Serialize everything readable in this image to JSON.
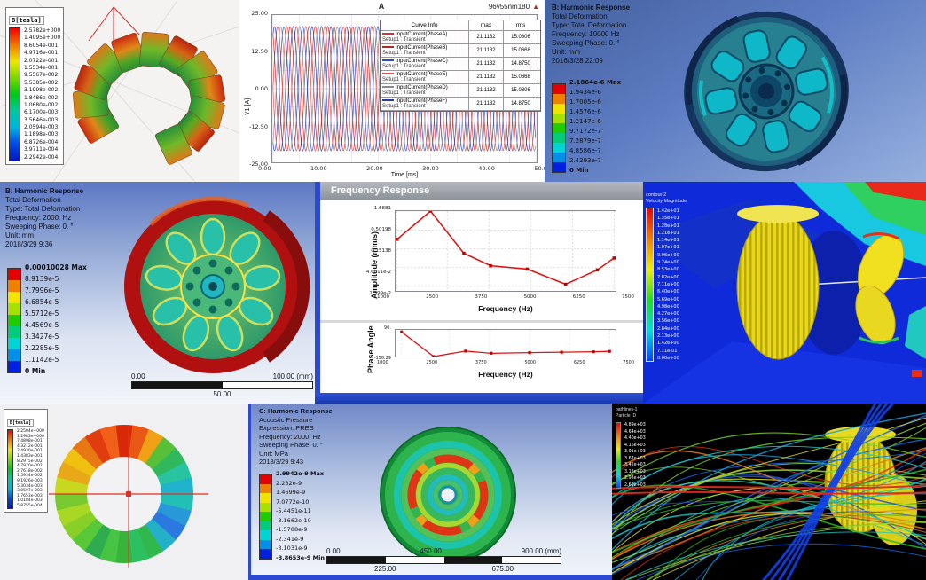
{
  "collage": {
    "maxwell_stator": {
      "legend_title": "B[tesla]",
      "legend_values": [
        "2.5782e+000",
        "1.4095e+000",
        "8.6054e-001",
        "4.9716e-001",
        "2.0722e-001",
        "1.5534e-001",
        "9.5567e-002",
        "5.5385e-002",
        "3.1998e-002",
        "1.8486e-002",
        "1.0680e-002",
        "6.1700e-003",
        "3.5646e-003",
        "2.0594e-003",
        "1.1898e-003",
        "6.8726e-004",
        "3.9711e-004",
        "2.2942e-004"
      ]
    },
    "current_plot": {
      "title": "A",
      "corner_label": "96v55nm180",
      "marker_icon": "▲",
      "ylabel": "Y1 [A]",
      "xlabel": "Time [ms]",
      "y_ticks": [
        "25.00",
        "12.50",
        "0.00",
        "-12.50",
        "-25.00"
      ],
      "x_ticks": [
        "0.00",
        "10.00",
        "20.00",
        "30.00",
        "40.00",
        "50.00"
      ],
      "legend_table": {
        "headers": [
          "Curve Info",
          "max",
          "rms"
        ],
        "setup_label": "Setup1 : Transient"
      }
    },
    "harmonic_top": {
      "info_lines": [
        "B: Harmonic Response",
        "Total Deformation",
        "Type: Total Deformation",
        "Frequency: 10000 Hz",
        "Sweeping Phase: 0. °",
        "Unit: mm",
        "2016/3/28 22:09"
      ],
      "legend_values": [
        "2.1864e-6 Max",
        "1.9434e-6",
        "1.7005e-6",
        "1.4576e-6",
        "1.2147e-6",
        "9.7172e-7",
        "7.2879e-7",
        "4.8586e-7",
        "2.4293e-7",
        "0 Min"
      ]
    },
    "harmonic_left": {
      "info_lines": [
        "B: Harmonic Response",
        "Total Deformation",
        "Type: Total Deformation",
        "Frequency: 2000. Hz",
        "Sweeping Phase: 0. °",
        "Unit: mm",
        "2018/3/29 9:36"
      ],
      "legend_values": [
        "0.00010028 Max",
        "8.9139e-5",
        "7.7996e-5",
        "6.6854e-5",
        "5.5712e-5",
        "4.4569e-5",
        "3.3427e-5",
        "2.2285e-5",
        "1.1142e-5",
        "0 Min"
      ],
      "ruler": {
        "start": "0.00",
        "mid": "50.00",
        "end": "100.00 (mm)"
      }
    },
    "freq_response": {
      "window_title": "Frequency Response",
      "amplitude": {
        "ylabel": "Amplitude (mm/s)",
        "xlabel": "Frequency (Hz)",
        "y_ticks": [
          "1.6881",
          "0.50198",
          "0.15138",
          "4.6011e-2",
          "1.399e-2"
        ],
        "x_ticks": [
          "1000",
          "2500",
          "3750",
          "5000",
          "6250",
          "7500"
        ]
      },
      "phase": {
        "ylabel": "Phase Angle",
        "xlabel": "Frequency (Hz)",
        "y_ticks": [
          "90.",
          "-150.29"
        ],
        "x_ticks": [
          "1000",
          "2500",
          "3750",
          "5000",
          "6250",
          "7500"
        ]
      }
    },
    "cfd_velocity": {
      "legend_title_1": "contour-2",
      "legend_title_2": "Velocity Magnitude",
      "legend_values": [
        "1.42e+01",
        "1.35e+01",
        "1.28e+01",
        "1.21e+01",
        "1.14e+01",
        "1.07e+01",
        "9.96e+00",
        "9.24e+00",
        "8.53e+00",
        "7.82e+00",
        "7.11e+00",
        "6.40e+00",
        "5.69e+00",
        "4.98e+00",
        "4.27e+00",
        "3.56e+00",
        "2.84e+00",
        "2.13e+00",
        "1.42e+00",
        "7.11e-01",
        "0.00e+00"
      ]
    },
    "maxwell_ring": {
      "legend_title": "B[tesla]",
      "legend_values": [
        "2.2504e+000",
        "1.2983e+000",
        "7.4898e-001",
        "4.3212e-001",
        "2.4930e-001",
        "1.4383e-001",
        "8.2975e-002",
        "4.7870e-002",
        "2.7618e-002",
        "1.5934e-002",
        "9.1926e-003",
        "5.3034e-003",
        "3.0597e-003",
        "1.7653e-003",
        "1.0184e-003",
        "5.8755e-004"
      ]
    },
    "acoustic": {
      "info_lines": [
        "C: Harmonic Response",
        "Acoustic Pressure",
        "Expression: PRES",
        "Frequency: 2000. Hz",
        "Sweeping Phase: 0. °",
        "Unit: MPa",
        "2018/3/29 9:43"
      ],
      "legend_values": [
        "2.9942e-9 Max",
        "2.232e-9",
        "1.4699e-9",
        "7.0772e-10",
        "-5.4451e-11",
        "-8.1662e-10",
        "-1.5788e-9",
        "-2.341e-9",
        "-3.1031e-9",
        "-3.8653e-9 Min"
      ],
      "ruler": {
        "start": "0.00",
        "q1": "225.00",
        "mid": "450.00",
        "q3": "675.00",
        "end": "900.00 (mm)"
      }
    },
    "streamlines": {
      "legend_title_1": "pathlines-1",
      "legend_title_2": "Particle ID",
      "legend_values": [
        "4.89e+03",
        "4.64e+03",
        "4.40e+03",
        "4.16e+03",
        "3.91e+03",
        "3.67e+03",
        "3.42e+03",
        "3.18e+03",
        "2.93e+03",
        "2.69e+03"
      ]
    }
  },
  "chart_data": [
    {
      "type": "line",
      "title": "A",
      "model": "96v55nm180",
      "xlabel": "Time [ms]",
      "ylabel": "Y1 [A]",
      "xlim": [
        0,
        50
      ],
      "ylim": [
        -25,
        25
      ],
      "amplitude": 21.1132,
      "period_ms": 3.571,
      "series": [
        {
          "name": "InputCurrent(PhaseA)",
          "max": "21.1132",
          "rms": "15.0806",
          "color": "#d83030",
          "phase_deg": 0
        },
        {
          "name": "InputCurrent(PhaseB)",
          "max": "21.1132",
          "rms": "15.0668",
          "color": "#b02828",
          "phase_deg": 120
        },
        {
          "name": "InputCurrent(PhaseC)",
          "max": "21.1132",
          "rms": "14.8750",
          "color": "#3048c0",
          "phase_deg": 240
        },
        {
          "name": "InputCurrent(PhaseE)",
          "max": "21.1132",
          "rms": "15.0668",
          "color": "#e05050",
          "phase_deg": 180
        },
        {
          "name": "InputCurrent(PhaseD)",
          "max": "21.1132",
          "rms": "15.0806",
          "color": "#8a8a92",
          "phase_deg": 300
        },
        {
          "name": "InputCurrent(PhaseF)",
          "max": "21.1132",
          "rms": "14.8750",
          "color": "#2838a0",
          "phase_deg": 60
        }
      ]
    },
    {
      "type": "line",
      "title": "Frequency Response - Amplitude",
      "xlabel": "Frequency (Hz)",
      "ylabel": "Amplitude (mm/s)",
      "yscale": "log",
      "xlim": [
        1000,
        7500
      ],
      "x": [
        1000,
        2000,
        3000,
        3800,
        4900,
        6050,
        7000,
        7500
      ],
      "y": [
        0.28,
        1.6881,
        0.115,
        0.052,
        0.042,
        0.016,
        0.04,
        0.085
      ],
      "color": "#dd1414"
    },
    {
      "type": "line",
      "title": "Frequency Response - Phase",
      "xlabel": "Frequency (Hz)",
      "ylabel": "Phase Angle",
      "ylim": [
        -180,
        110
      ],
      "x": [
        1000,
        2000,
        3000,
        3800,
        5000,
        6000,
        7000,
        7500
      ],
      "y": [
        90,
        -150.29,
        -97,
        -118,
        -112,
        -108,
        -104,
        -100
      ],
      "color": "#dd1414"
    }
  ]
}
